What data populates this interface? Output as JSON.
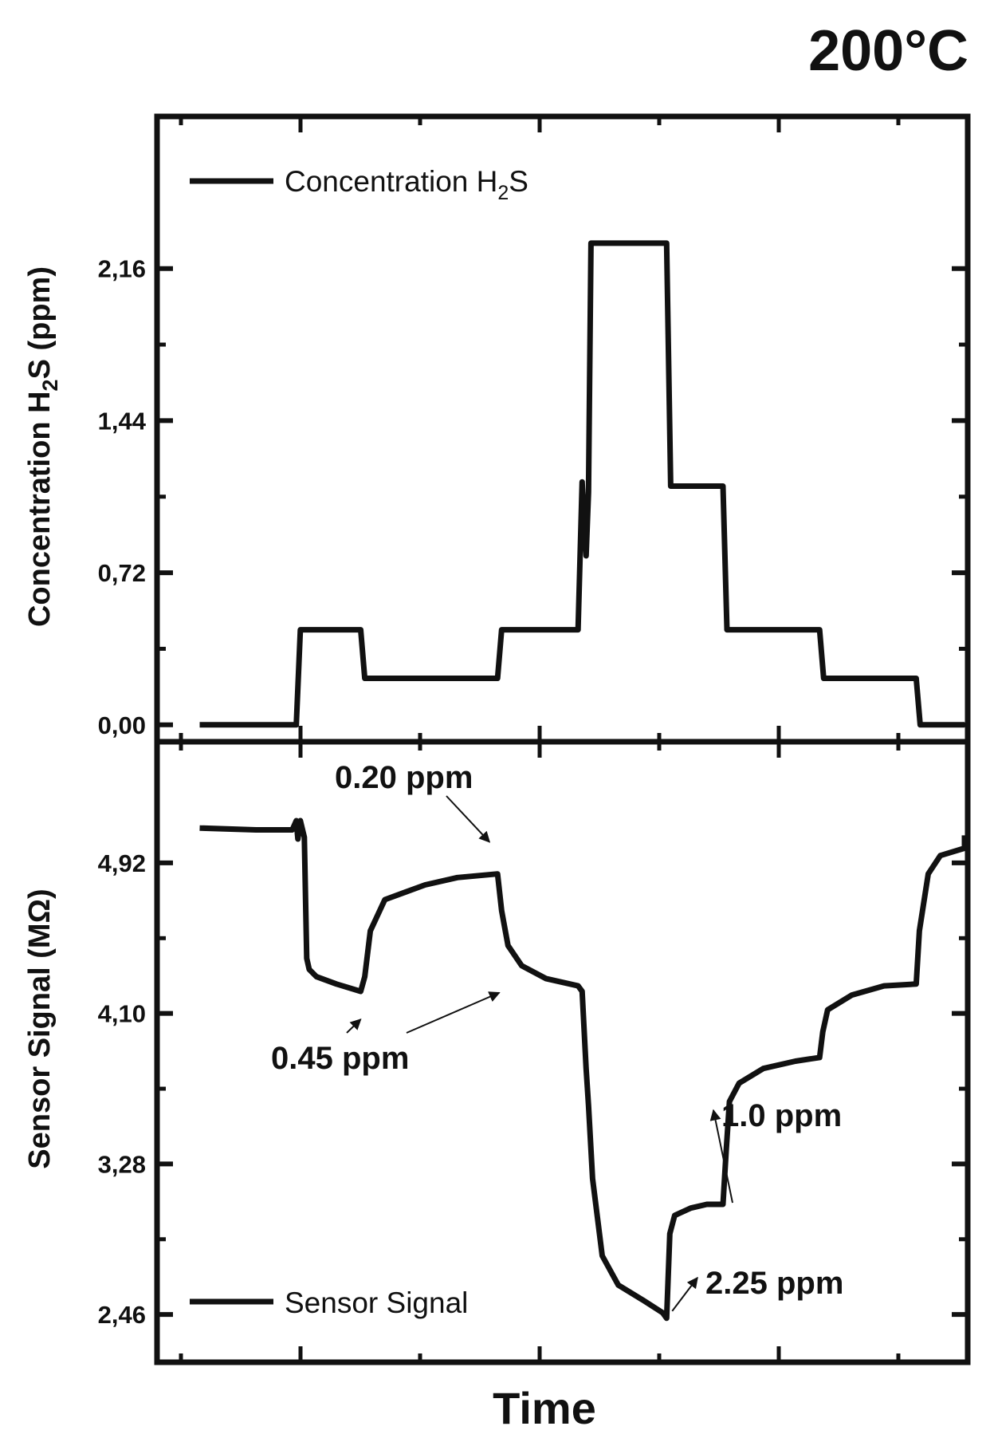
{
  "corner_label": "200°C",
  "chart_data": [
    {
      "type": "line",
      "panel": "top",
      "title": "",
      "xlabel": "",
      "ylabel": "Concentration H₂S (ppm)",
      "ylabel_parts": {
        "pre": "Concentration H",
        "sub": "2",
        "post": "S (ppm)"
      },
      "ylim": [
        -0.08,
        2.88
      ],
      "xlim": [
        0,
        100
      ],
      "yticks": [
        0.0,
        0.72,
        1.44,
        2.16
      ],
      "ytick_labels": [
        "0,00",
        "0,72",
        "1,44",
        "2,16"
      ],
      "grid": false,
      "legend": {
        "position": "top-left",
        "pre": "Concentration H",
        "sub": "2",
        "post": "S"
      },
      "series": [
        {
          "name": "Concentration H₂S",
          "x": [
            5,
            17,
            17.5,
            25,
            25.5,
            42,
            42.5,
            52,
            52.5,
            53,
            53.3,
            53.6,
            54,
            63,
            63.5,
            70,
            70.5,
            82,
            82.5,
            94,
            94.5,
            105
          ],
          "y": [
            0,
            0,
            0.45,
            0.45,
            0.22,
            0.22,
            0.45,
            0.45,
            1.15,
            0.8,
            1.1,
            2.28,
            2.28,
            2.28,
            1.13,
            1.13,
            0.45,
            0.45,
            0.22,
            0.22,
            0,
            0
          ]
        }
      ]
    },
    {
      "type": "line",
      "panel": "bottom",
      "title": "",
      "xlabel": "Time",
      "ylabel": "Sensor Signal (MΩ)",
      "ylim": [
        2.2,
        5.58
      ],
      "xlim": [
        0,
        100
      ],
      "yticks": [
        2.46,
        3.28,
        4.1,
        4.92
      ],
      "ytick_labels": [
        "2,46",
        "3,28",
        "4,10",
        "4,92"
      ],
      "grid": false,
      "legend": {
        "position": "bottom-left",
        "label": "Sensor Signal"
      },
      "series": [
        {
          "name": "Sensor Signal",
          "x": [
            5,
            12,
            16.5,
            17,
            17.2,
            17.5,
            18,
            18.3,
            18.6,
            19.5,
            22,
            25,
            25.5,
            26.2,
            28,
            33,
            37,
            42,
            42.5,
            43.3,
            45,
            48,
            52,
            52.5,
            53,
            53.3,
            53.8,
            55,
            57,
            60,
            62.5,
            63,
            63.4,
            64,
            66,
            68,
            70,
            70.4,
            70.8,
            72,
            75,
            79,
            82,
            82.4,
            83,
            86,
            90,
            94,
            94.4,
            95.5,
            97,
            100,
            104,
            105
          ],
          "y": [
            5.11,
            5.1,
            5.1,
            5.15,
            5.05,
            5.15,
            5.06,
            4.4,
            4.34,
            4.3,
            4.26,
            4.22,
            4.3,
            4.55,
            4.72,
            4.8,
            4.84,
            4.86,
            4.66,
            4.47,
            4.36,
            4.29,
            4.25,
            4.22,
            3.8,
            3.6,
            3.2,
            2.78,
            2.62,
            2.54,
            2.47,
            2.44,
            2.9,
            3.0,
            3.04,
            3.06,
            3.06,
            3.35,
            3.62,
            3.72,
            3.8,
            3.84,
            3.86,
            4.0,
            4.12,
            4.2,
            4.25,
            4.26,
            4.55,
            4.86,
            4.96,
            5.0,
            5.05,
            5.07
          ]
        }
      ],
      "annotations": [
        {
          "text": "0.20 ppm",
          "x": 41,
          "y": 4.86
        },
        {
          "text": "0.45 ppm",
          "x": 25,
          "y": 4.22
        },
        {
          "text": "0.45 ppm",
          "x": 44,
          "y": 4.3
        },
        {
          "text": "1.0 ppm",
          "x": 70,
          "y": 3.06
        },
        {
          "text": "2.25 ppm",
          "x": 62.5,
          "y": 2.47
        }
      ]
    }
  ]
}
